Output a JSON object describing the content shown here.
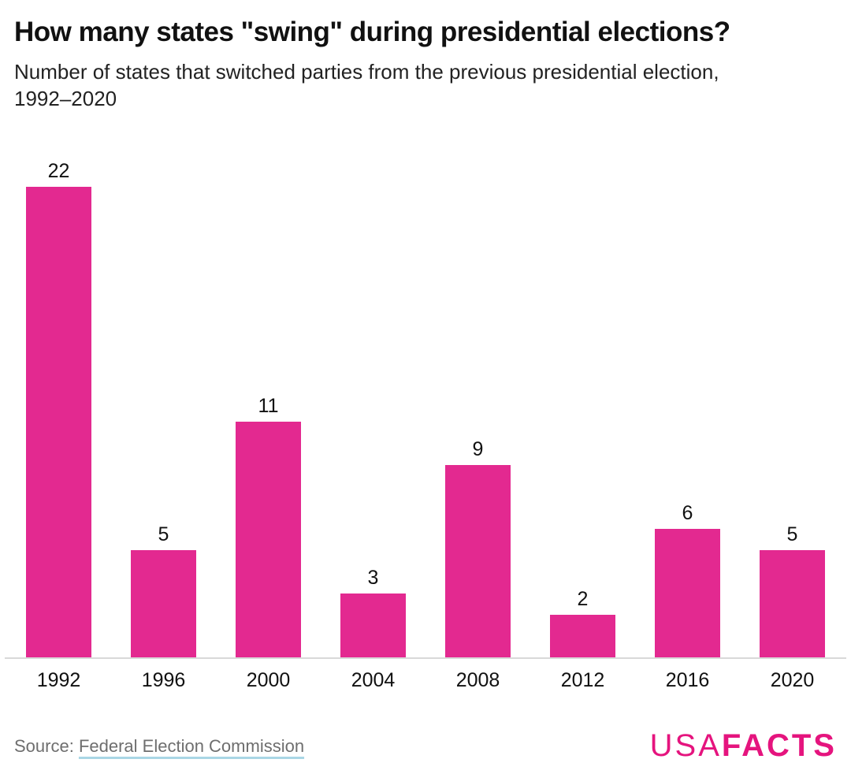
{
  "header": {
    "title": "How many states \"swing\" during presidential elections?",
    "subtitle_line1": "Number of states that switched parties from the previous presidential election,",
    "subtitle_line2": "1992–2020"
  },
  "chart_data": {
    "type": "bar",
    "title": "How many states \"swing\" during presidential elections?",
    "subtitle": "Number of states that switched parties from the previous presidential election, 1992–2020",
    "categories": [
      "1992",
      "1996",
      "2000",
      "2004",
      "2008",
      "2012",
      "2016",
      "2020"
    ],
    "values": [
      22,
      5,
      11,
      3,
      9,
      2,
      6,
      5
    ],
    "xlabel": "",
    "ylabel": "",
    "ylim": [
      0,
      22
    ],
    "grid": false,
    "legend": false,
    "data_labels": true,
    "bar_color": "#e32990",
    "axis_line_color": "#d9d9d9"
  },
  "footer": {
    "source_prefix": "Source:",
    "source_link": "Federal Election Commission",
    "logo": {
      "part1": "USA",
      "part2": "FACTS",
      "color": "#e5147e"
    }
  }
}
